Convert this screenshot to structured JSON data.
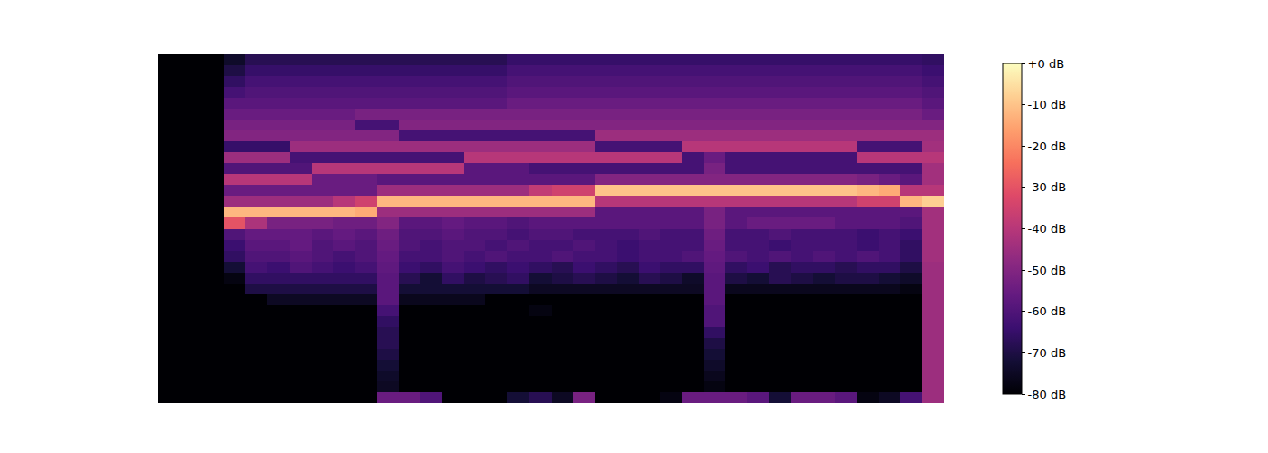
{
  "chart_data": {
    "type": "heatmap",
    "tick_labels": false,
    "colorbar": {
      "range": [
        -80,
        0
      ],
      "ticks": [
        {
          "value": 0,
          "label": "+0 dB"
        },
        {
          "value": -10,
          "label": "-10 dB"
        },
        {
          "value": -20,
          "label": "-20 dB"
        },
        {
          "value": -30,
          "label": "-30 dB"
        },
        {
          "value": -40,
          "label": "-40 dB"
        },
        {
          "value": -50,
          "label": "-50 dB"
        },
        {
          "value": -60,
          "label": "-60 dB"
        },
        {
          "value": -70,
          "label": "-70 dB"
        },
        {
          "value": -80,
          "label": "-80 dB"
        }
      ]
    },
    "cells": [
      [
        -80,
        -80,
        -80,
        -80,
        -80,
        -80,
        -80,
        -80,
        -80,
        -80,
        -55,
        -55,
        -60,
        -80,
        -80,
        -80,
        -72,
        -68,
        -75,
        -52,
        -80,
        -80,
        -80,
        -78,
        -55,
        -55,
        -55,
        -58,
        -72,
        -55,
        -55,
        -58,
        -78,
        -75,
        -62,
        -45
      ],
      [
        -80,
        -80,
        -80,
        -80,
        -80,
        -80,
        -80,
        -80,
        -80,
        -80,
        -75,
        -80,
        -80,
        -80,
        -80,
        -80,
        -80,
        -80,
        -80,
        -80,
        -80,
        -80,
        -80,
        -80,
        -80,
        -78,
        -80,
        -80,
        -80,
        -80,
        -80,
        -80,
        -80,
        -80,
        -80,
        -45
      ],
      [
        -80,
        -80,
        -80,
        -80,
        -80,
        -80,
        -80,
        -80,
        -80,
        -80,
        -74,
        -80,
        -80,
        -80,
        -80,
        -80,
        -80,
        -80,
        -80,
        -80,
        -80,
        -80,
        -80,
        -80,
        -80,
        -76,
        -80,
        -80,
        -80,
        -80,
        -80,
        -80,
        -80,
        -80,
        -80,
        -45
      ],
      [
        -80,
        -80,
        -80,
        -80,
        -80,
        -80,
        -80,
        -80,
        -80,
        -80,
        -72,
        -80,
        -80,
        -80,
        -80,
        -80,
        -80,
        -80,
        -80,
        -80,
        -80,
        -80,
        -80,
        -80,
        -80,
        -74,
        -80,
        -80,
        -80,
        -80,
        -80,
        -80,
        -80,
        -80,
        -80,
        -45
      ],
      [
        -80,
        -80,
        -80,
        -80,
        -80,
        -80,
        -80,
        -80,
        -80,
        -80,
        -70,
        -80,
        -80,
        -80,
        -80,
        -80,
        -80,
        -80,
        -80,
        -80,
        -80,
        -80,
        -80,
        -80,
        -80,
        -72,
        -80,
        -80,
        -80,
        -80,
        -80,
        -80,
        -80,
        -80,
        -80,
        -45
      ],
      [
        -80,
        -80,
        -80,
        -80,
        -80,
        -80,
        -80,
        -80,
        -80,
        -80,
        -68,
        -80,
        -80,
        -80,
        -80,
        -80,
        -80,
        -80,
        -80,
        -80,
        -80,
        -80,
        -80,
        -80,
        -80,
        -70,
        -80,
        -80,
        -80,
        -80,
        -80,
        -80,
        -80,
        -80,
        -80,
        -45
      ],
      [
        -80,
        -80,
        -80,
        -80,
        -80,
        -80,
        -80,
        -80,
        -80,
        -80,
        -68,
        -80,
        -80,
        -80,
        -80,
        -80,
        -80,
        -80,
        -80,
        -80,
        -80,
        -80,
        -80,
        -80,
        -80,
        -66,
        -80,
        -80,
        -80,
        -80,
        -80,
        -80,
        -80,
        -80,
        -80,
        -45
      ],
      [
        -80,
        -80,
        -80,
        -80,
        -80,
        -80,
        -80,
        -80,
        -80,
        -80,
        -66,
        -80,
        -80,
        -80,
        -80,
        -80,
        -80,
        -80,
        -80,
        -80,
        -80,
        -80,
        -80,
        -80,
        -80,
        -60,
        -80,
        -80,
        -80,
        -80,
        -80,
        -80,
        -80,
        -80,
        -80,
        -45
      ],
      [
        -80,
        -80,
        -80,
        -80,
        -80,
        -80,
        -80,
        -80,
        -80,
        -80,
        -62,
        -80,
        -80,
        -80,
        -80,
        -80,
        -80,
        -78,
        -80,
        -80,
        -80,
        -80,
        -80,
        -80,
        -80,
        -60,
        -80,
        -80,
        -80,
        -80,
        -80,
        -80,
        -80,
        -80,
        -80,
        -45
      ],
      [
        -80,
        -80,
        -80,
        -80,
        -80,
        -75,
        -75,
        -75,
        -75,
        -75,
        -58,
        -76,
        -76,
        -76,
        -76,
        -80,
        -80,
        -80,
        -80,
        -80,
        -80,
        -80,
        -80,
        -80,
        -80,
        -58,
        -80,
        -80,
        -80,
        -80,
        -80,
        -80,
        -80,
        -80,
        -80,
        -45
      ],
      [
        -80,
        -80,
        -80,
        -80,
        -70,
        -70,
        -70,
        -70,
        -70,
        -70,
        -58,
        -72,
        -72,
        -72,
        -72,
        -72,
        -72,
        -75,
        -75,
        -75,
        -75,
        -75,
        -75,
        -75,
        -75,
        -58,
        -76,
        -76,
        -76,
        -76,
        -76,
        -76,
        -76,
        -76,
        -78,
        -45
      ],
      [
        -80,
        -80,
        -80,
        -78,
        -66,
        -66,
        -66,
        -66,
        -66,
        -66,
        -58,
        -68,
        -72,
        -66,
        -70,
        -68,
        -66,
        -72,
        -70,
        -68,
        -70,
        -72,
        -68,
        -70,
        -74,
        -58,
        -70,
        -72,
        -68,
        -70,
        -72,
        -70,
        -70,
        -72,
        -74,
        -45
      ],
      [
        -80,
        -80,
        -80,
        -72,
        -62,
        -64,
        -60,
        -62,
        -64,
        -62,
        -57,
        -64,
        -66,
        -62,
        -64,
        -66,
        -64,
        -66,
        -68,
        -64,
        -66,
        -68,
        -64,
        -66,
        -66,
        -57,
        -66,
        -64,
        -68,
        -66,
        -66,
        -68,
        -66,
        -66,
        -70,
        -45
      ],
      [
        -80,
        -80,
        -80,
        -66,
        -60,
        -60,
        -58,
        -60,
        -62,
        -60,
        -56,
        -62,
        -62,
        -60,
        -62,
        -60,
        -62,
        -62,
        -60,
        -62,
        -62,
        -64,
        -62,
        -62,
        -60,
        -56,
        -60,
        -62,
        -60,
        -62,
        -60,
        -62,
        -60,
        -62,
        -66,
        -44
      ],
      [
        -80,
        -80,
        -80,
        -64,
        -58,
        -58,
        -56,
        -60,
        -58,
        -60,
        -55,
        -60,
        -62,
        -60,
        -60,
        -62,
        -60,
        -62,
        -62,
        -60,
        -62,
        -64,
        -62,
        -62,
        -62,
        -55,
        -62,
        -62,
        -64,
        -62,
        -62,
        -62,
        -64,
        -62,
        -66,
        -44
      ],
      [
        -80,
        -80,
        -80,
        -60,
        -56,
        -56,
        -56,
        -58,
        -56,
        -58,
        -54,
        -60,
        -60,
        -58,
        -60,
        -60,
        -62,
        -60,
        -60,
        -62,
        -62,
        -62,
        -60,
        -62,
        -62,
        -54,
        -62,
        -62,
        -60,
        -62,
        -62,
        -62,
        -64,
        -62,
        -64,
        -44
      ],
      [
        -80,
        -80,
        -80,
        -30,
        -42,
        -52,
        -52,
        -52,
        -54,
        -54,
        -50,
        -58,
        -58,
        -56,
        -58,
        -58,
        -60,
        -58,
        -58,
        -58,
        -58,
        -58,
        -58,
        -58,
        -58,
        -52,
        -58,
        -55,
        -55,
        -55,
        -55,
        -58,
        -58,
        -58,
        -60,
        -44
      ],
      [
        -80,
        -80,
        -80,
        -12,
        -12,
        -12,
        -12,
        -12,
        -12,
        -14,
        -45,
        -45,
        -45,
        -45,
        -45,
        -45,
        -45,
        -45,
        -45,
        -45,
        -58,
        -58,
        -58,
        -58,
        -58,
        -52,
        -58,
        -58,
        -58,
        -58,
        -58,
        -58,
        -58,
        -58,
        -58,
        -44
      ],
      [
        -80,
        -80,
        -80,
        -45,
        -45,
        -45,
        -45,
        -45,
        -40,
        -35,
        -12,
        -12,
        -12,
        -12,
        -12,
        -12,
        -12,
        -12,
        -12,
        -12,
        -40,
        -40,
        -40,
        -40,
        -40,
        -40,
        -40,
        -40,
        -40,
        -40,
        -40,
        -40,
        -35,
        -35,
        -12,
        -8
      ],
      [
        -80,
        -80,
        -80,
        -55,
        -55,
        -55,
        -55,
        -55,
        -55,
        -55,
        -45,
        -45,
        -45,
        -45,
        -45,
        -45,
        -45,
        -38,
        -35,
        -35,
        -10,
        -10,
        -10,
        -10,
        -10,
        -10,
        -10,
        -10,
        -10,
        -10,
        -10,
        -10,
        -12,
        -14,
        -40,
        -40
      ],
      [
        -80,
        -80,
        -80,
        -40,
        -40,
        -40,
        -40,
        -55,
        -55,
        -55,
        -58,
        -58,
        -58,
        -58,
        -58,
        -58,
        -58,
        -58,
        -58,
        -58,
        -50,
        -50,
        -50,
        -50,
        -50,
        -50,
        -50,
        -50,
        -50,
        -50,
        -50,
        -50,
        -52,
        -55,
        -58,
        -44
      ],
      [
        -80,
        -80,
        -80,
        -60,
        -60,
        -60,
        -60,
        -40,
        -40,
        -40,
        -40,
        -40,
        -40,
        -40,
        -58,
        -58,
        -58,
        -62,
        -62,
        -62,
        -62,
        -62,
        -62,
        -62,
        -62,
        -52,
        -62,
        -62,
        -62,
        -62,
        -62,
        -62,
        -62,
        -62,
        -62,
        -44
      ],
      [
        -80,
        -80,
        -80,
        -45,
        -45,
        -45,
        -62,
        -62,
        -62,
        -62,
        -62,
        -62,
        -62,
        -62,
        -40,
        -40,
        -40,
        -40,
        -40,
        -40,
        -40,
        -40,
        -40,
        -40,
        -62,
        -55,
        -62,
        -62,
        -62,
        -62,
        -62,
        -62,
        -40,
        -40,
        -40,
        -40
      ],
      [
        -80,
        -80,
        -80,
        -65,
        -65,
        -65,
        -45,
        -45,
        -45,
        -45,
        -45,
        -45,
        -45,
        -45,
        -45,
        -45,
        -45,
        -45,
        -45,
        -45,
        -62,
        -62,
        -62,
        -62,
        -40,
        -40,
        -40,
        -40,
        -40,
        -40,
        -40,
        -40,
        -62,
        -62,
        -62,
        -44
      ],
      [
        -80,
        -80,
        -80,
        -50,
        -50,
        -50,
        -50,
        -50,
        -50,
        -50,
        -50,
        -62,
        -62,
        -62,
        -62,
        -62,
        -62,
        -62,
        -62,
        -62,
        -45,
        -45,
        -45,
        -45,
        -45,
        -45,
        -45,
        -45,
        -45,
        -45,
        -45,
        -45,
        -45,
        -45,
        -45,
        -45
      ],
      [
        -80,
        -80,
        -80,
        -52,
        -52,
        -52,
        -52,
        -52,
        -52,
        -62,
        -62,
        -50,
        -50,
        -50,
        -50,
        -50,
        -50,
        -50,
        -50,
        -50,
        -50,
        -50,
        -50,
        -50,
        -50,
        -50,
        -50,
        -50,
        -50,
        -50,
        -50,
        -50,
        -50,
        -50,
        -50,
        -50
      ],
      [
        -80,
        -80,
        -80,
        -55,
        -55,
        -55,
        -55,
        -55,
        -55,
        -52,
        -52,
        -52,
        -52,
        -52,
        -52,
        -52,
        -52,
        -52,
        -52,
        -52,
        -52,
        -52,
        -52,
        -52,
        -52,
        -52,
        -52,
        -52,
        -52,
        -52,
        -52,
        -52,
        -52,
        -52,
        -52,
        -55
      ],
      [
        -80,
        -80,
        -80,
        -58,
        -58,
        -58,
        -58,
        -58,
        -58,
        -58,
        -58,
        -58,
        -58,
        -58,
        -58,
        -58,
        -55,
        -55,
        -55,
        -55,
        -55,
        -55,
        -55,
        -55,
        -55,
        -55,
        -55,
        -55,
        -55,
        -55,
        -55,
        -55,
        -55,
        -55,
        -55,
        -58
      ],
      [
        -80,
        -80,
        -80,
        -62,
        -60,
        -60,
        -60,
        -60,
        -60,
        -60,
        -60,
        -60,
        -60,
        -60,
        -60,
        -60,
        -58,
        -58,
        -58,
        -58,
        -58,
        -58,
        -58,
        -58,
        -58,
        -58,
        -58,
        -58,
        -58,
        -58,
        -58,
        -58,
        -58,
        -58,
        -58,
        -60
      ],
      [
        -80,
        -80,
        -80,
        -66,
        -62,
        -62,
        -62,
        -62,
        -62,
        -62,
        -62,
        -62,
        -62,
        -62,
        -62,
        -62,
        -60,
        -60,
        -60,
        -60,
        -60,
        -60,
        -60,
        -60,
        -60,
        -60,
        -60,
        -60,
        -60,
        -60,
        -60,
        -60,
        -60,
        -60,
        -60,
        -62
      ],
      [
        -80,
        -80,
        -80,
        -70,
        -65,
        -65,
        -65,
        -65,
        -65,
        -65,
        -65,
        -65,
        -65,
        -65,
        -65,
        -65,
        -62,
        -62,
        -62,
        -62,
        -62,
        -62,
        -62,
        -62,
        -62,
        -62,
        -62,
        -62,
        -62,
        -62,
        -62,
        -62,
        -62,
        -62,
        -62,
        -64
      ],
      [
        -80,
        -80,
        -80,
        -74,
        -68,
        -68,
        -68,
        -68,
        -68,
        -68,
        -68,
        -68,
        -68,
        -68,
        -68,
        -68,
        -65,
        -65,
        -65,
        -65,
        -65,
        -65,
        -65,
        -65,
        -65,
        -65,
        -65,
        -65,
        -65,
        -65,
        -65,
        -65,
        -65,
        -65,
        -65,
        -66
      ]
    ]
  }
}
